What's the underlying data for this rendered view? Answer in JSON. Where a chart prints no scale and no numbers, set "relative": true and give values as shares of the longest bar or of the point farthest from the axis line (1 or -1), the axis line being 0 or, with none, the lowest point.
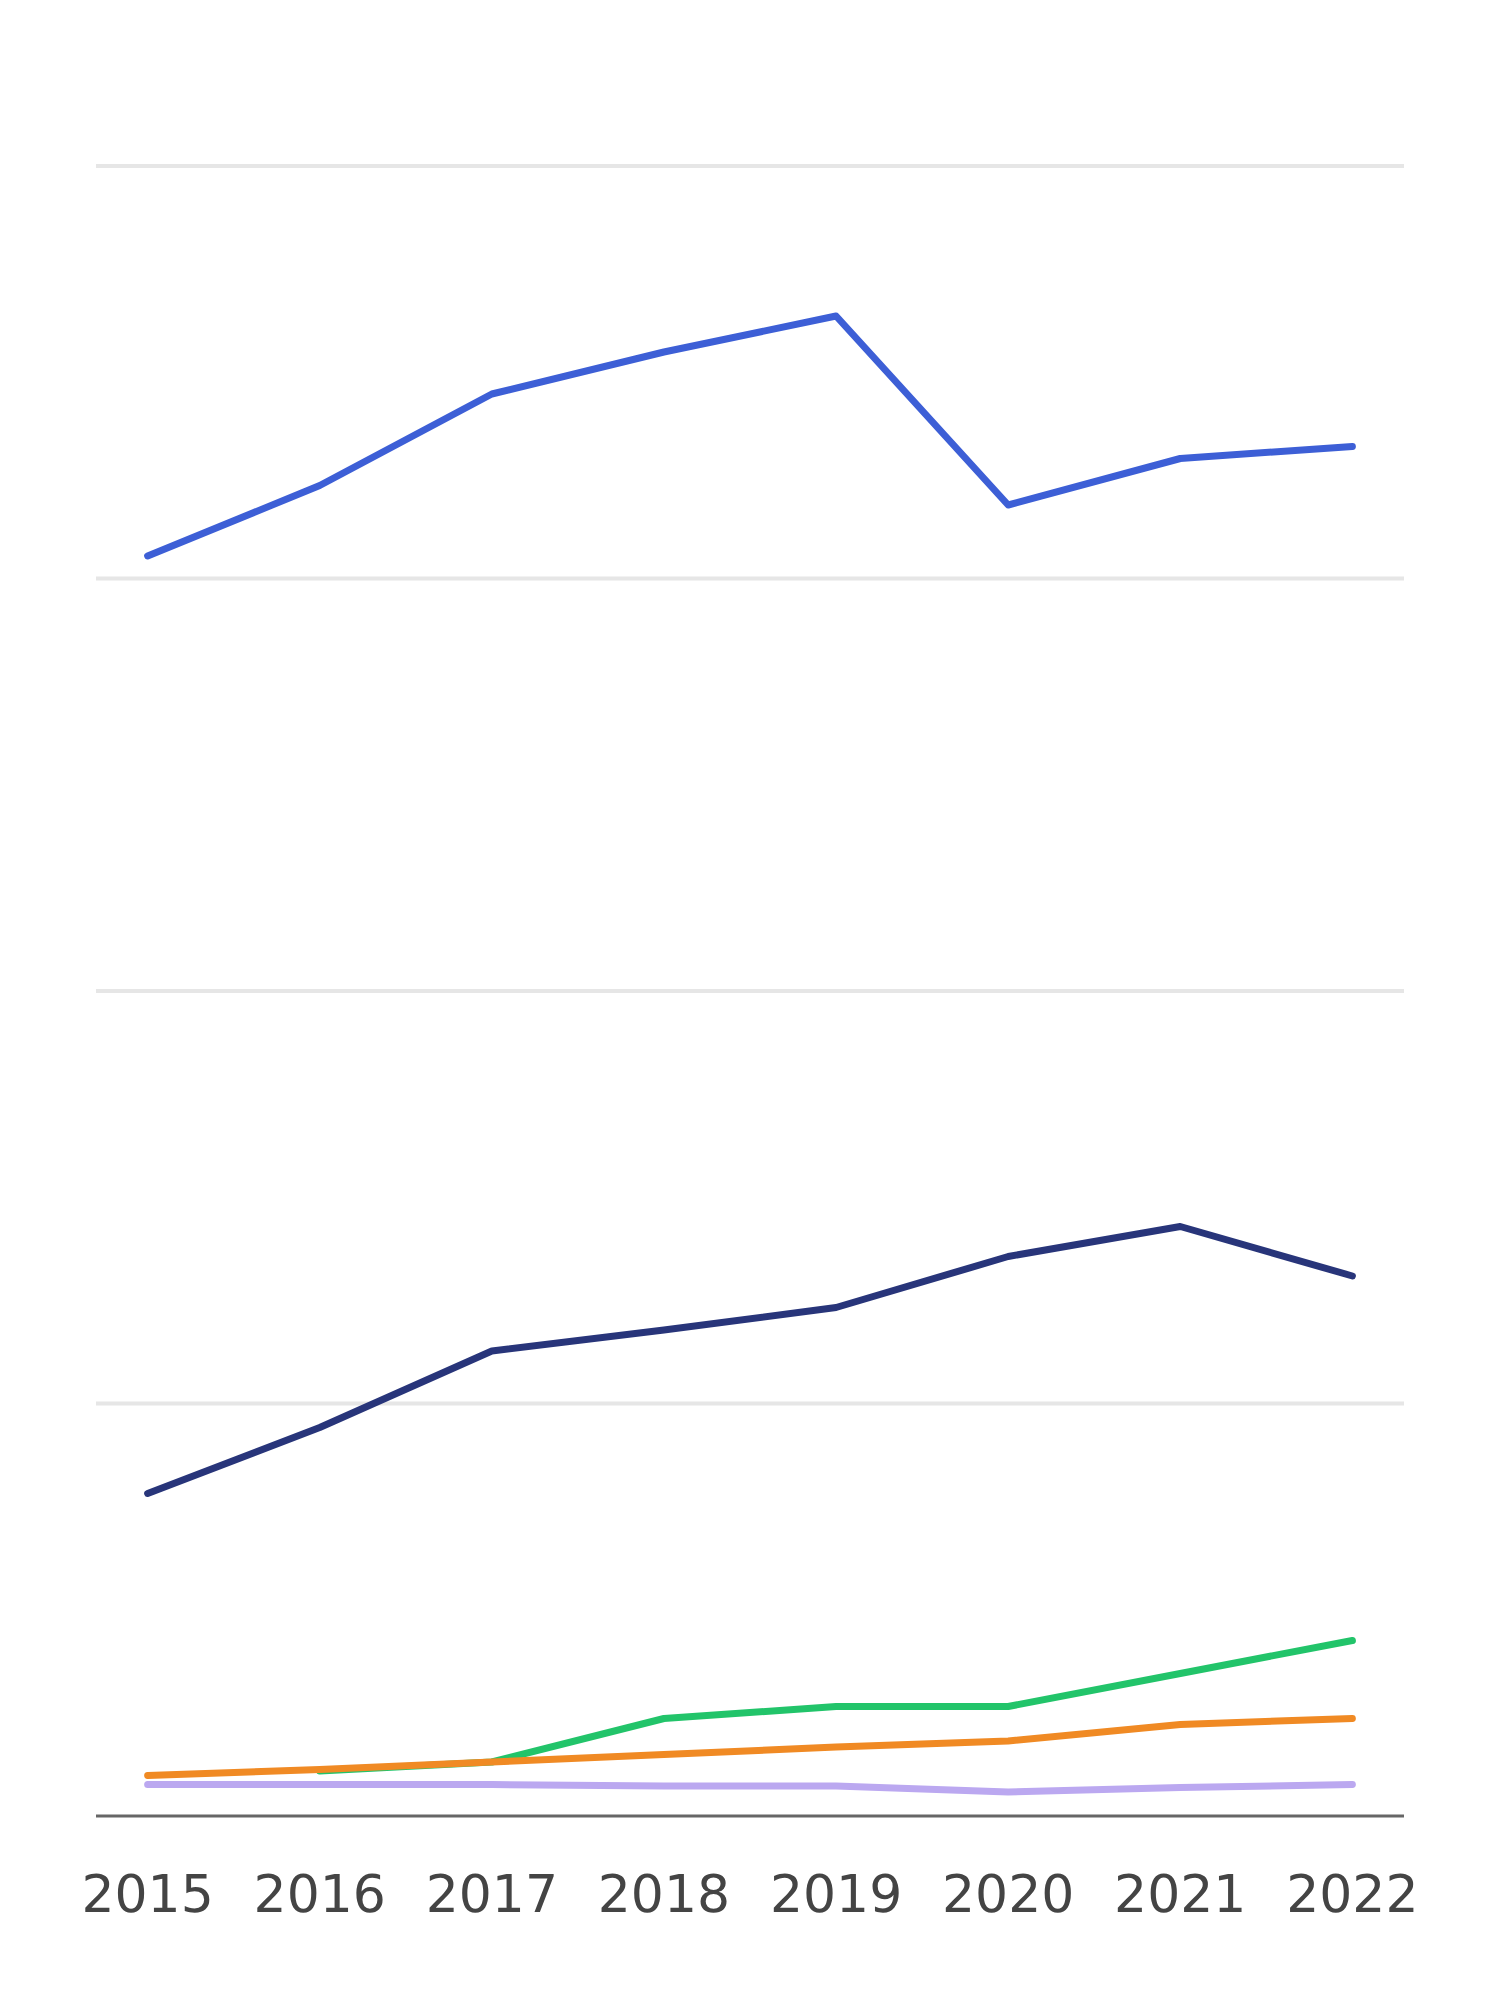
{
  "chart_data": {
    "type": "line",
    "relative": true,
    "grid": "y",
    "categories": [
      "2015",
      "2016",
      "2017",
      "2018",
      "2019",
      "2020",
      "2021",
      "2022"
    ],
    "series": [
      {
        "color": "#3d5fd6",
        "values": [
          0.84,
          0.887,
          0.948,
          0.976,
          1.0,
          0.874,
          0.905,
          0.913
        ]
      },
      {
        "color": "#28357a",
        "values": [
          0.215,
          0.259,
          0.31,
          0.324,
          0.339,
          0.373,
          0.393,
          0.36
        ]
      },
      {
        "color": "#22c46a",
        "values": [
          null,
          0.03,
          0.036,
          0.065,
          0.073,
          0.073,
          0.095,
          0.117
        ]
      },
      {
        "color": "#f08a24",
        "values": [
          0.027,
          0.031,
          0.036,
          0.041,
          0.046,
          0.05,
          0.061,
          0.065
        ]
      },
      {
        "color": "#bba8f0",
        "values": [
          0.021,
          0.021,
          0.021,
          0.02,
          0.02,
          0.016,
          0.019,
          0.021
        ]
      }
    ]
  }
}
